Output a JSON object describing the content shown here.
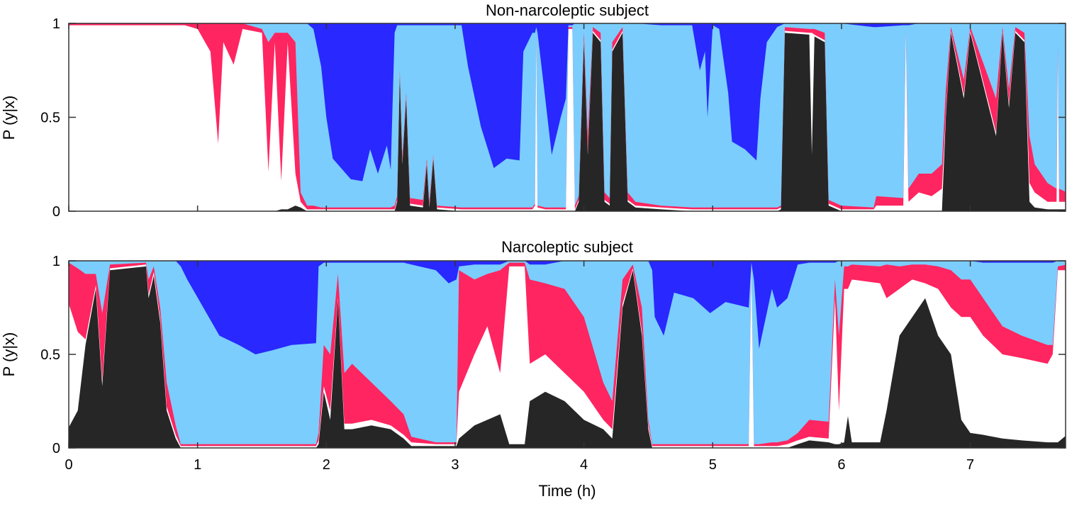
{
  "chart_data": [
    {
      "type": "area",
      "stacked": true,
      "title": "Non-narcoleptic subject",
      "ylabel": "P (y|x)",
      "xlabel": "",
      "xlim": [
        0,
        7.74
      ],
      "ylim": [
        0,
        1
      ],
      "yticks": [
        "0",
        "0.5",
        "1"
      ],
      "yticks_values": [
        0,
        0.5,
        1
      ],
      "xticks_values": [
        0,
        1,
        2,
        3,
        4,
        5,
        6,
        7
      ],
      "show_xtick_labels": false,
      "value_format": "cumulative stacked upper bound of each layer (bottom to top)",
      "x": [
        0,
        0.9,
        1.0,
        1.1,
        1.16,
        1.2,
        1.28,
        1.35,
        1.5,
        1.55,
        1.6,
        1.65,
        1.7,
        1.76,
        1.8,
        1.85,
        1.9,
        1.96,
        2.0,
        2.05,
        2.19,
        2.28,
        2.34,
        2.4,
        2.47,
        2.5,
        2.53,
        2.55,
        2.57,
        2.59,
        2.62,
        2.65,
        2.75,
        2.78,
        2.8,
        2.83,
        2.86,
        3.05,
        3.1,
        3.2,
        3.3,
        3.4,
        3.5,
        3.53,
        3.6,
        3.62,
        3.63,
        3.64,
        3.7,
        3.75,
        3.82,
        3.86,
        3.88,
        3.91,
        3.93,
        3.96,
        4.0,
        4.03,
        4.07,
        4.13,
        4.16,
        4.2,
        4.22,
        4.3,
        4.34,
        4.4,
        4.6,
        4.84,
        4.9,
        4.94,
        4.96,
        5.0,
        5.05,
        5.12,
        5.15,
        5.25,
        5.34,
        5.37,
        5.42,
        5.5,
        5.53,
        5.56,
        5.75,
        5.77,
        5.79,
        5.87,
        5.9,
        6.0,
        6.25,
        6.27,
        6.48,
        6.5,
        6.52,
        6.6,
        6.7,
        6.78,
        6.81,
        6.85,
        6.95,
        7.0,
        7.2,
        7.25,
        7.3,
        7.35,
        7.42,
        7.46,
        7.5,
        7.6,
        7.67,
        7.68,
        7.69,
        7.75
      ],
      "series": [
        {
          "color": "#262626",
          "cum": [
            0,
            0,
            0,
            0,
            0,
            0,
            0,
            0,
            0,
            0,
            0,
            0.01,
            0.01,
            0.03,
            0.02,
            0,
            0,
            0,
            0,
            0,
            0,
            0,
            0,
            0,
            0,
            0,
            0,
            0.05,
            0.72,
            0.25,
            0.6,
            0.03,
            0.02,
            0.25,
            0.02,
            0.28,
            0.01,
            0,
            0,
            0,
            0,
            0,
            0,
            0,
            0,
            0,
            0,
            0,
            0,
            0,
            0,
            0,
            0,
            0,
            0,
            0.05,
            0.9,
            0.3,
            0.95,
            0.9,
            0.05,
            0.03,
            0.85,
            0.95,
            0.05,
            0.02,
            0.01,
            0,
            0,
            0,
            0,
            0,
            0,
            0,
            0,
            0,
            0,
            0,
            0,
            0,
            0.01,
            0.95,
            0.94,
            0.3,
            0.93,
            0.9,
            0.03,
            0,
            0,
            0,
            0,
            0,
            0,
            0,
            0,
            0,
            0.5,
            0.95,
            0.6,
            0.95,
            0.4,
            0.95,
            0.55,
            0.95,
            0.9,
            0.05,
            0.02,
            0.01,
            0.01,
            0.01,
            0.01,
            0.01
          ]
        },
        {
          "color": "#ffffff",
          "cum": [
            0.99,
            0.99,
            0.97,
            0.85,
            0.36,
            0.9,
            0.78,
            0.97,
            0.95,
            0.21,
            0.9,
            0.16,
            0.9,
            0.2,
            0.05,
            0.01,
            0.01,
            0.01,
            0.01,
            0.01,
            0.01,
            0.01,
            0.01,
            0.01,
            0.01,
            0.01,
            0.01,
            0.06,
            0.73,
            0.26,
            0.61,
            0.04,
            0.03,
            0.26,
            0.03,
            0.29,
            0.02,
            0.01,
            0.01,
            0.01,
            0.01,
            0.01,
            0.01,
            0.01,
            0.01,
            0.03,
            0.95,
            0.02,
            0.01,
            0.01,
            0.01,
            0.01,
            0.97,
            0.97,
            0.01,
            0.06,
            0.91,
            0.31,
            0.96,
            0.91,
            0.06,
            0.04,
            0.86,
            0.96,
            0.06,
            0.03,
            0.02,
            0.01,
            0.01,
            0.01,
            0.01,
            0.01,
            0.01,
            0.01,
            0.01,
            0.01,
            0.01,
            0.01,
            0.01,
            0.01,
            0.02,
            0.96,
            0.95,
            0.95,
            0.94,
            0.91,
            0.04,
            0.01,
            0.01,
            0.03,
            0.03,
            0.95,
            0.05,
            0.1,
            0.08,
            0.12,
            0.52,
            0.96,
            0.62,
            0.96,
            0.42,
            0.96,
            0.57,
            0.96,
            0.91,
            0.15,
            0.1,
            0.05,
            0.05,
            0.85,
            0.05,
            0.05
          ]
        },
        {
          "color": "#ff2560",
          "cum": [
            1,
            1,
            1,
            1,
            1,
            1,
            1,
            1,
            0.97,
            0.9,
            0.95,
            0.95,
            0.95,
            0.9,
            0.1,
            0.03,
            0.03,
            0.02,
            0.02,
            0.02,
            0.02,
            0.02,
            0.02,
            0.02,
            0.02,
            0.02,
            0.03,
            0.08,
            0.75,
            0.29,
            0.63,
            0.07,
            0.06,
            0.28,
            0.05,
            0.3,
            0.03,
            0.02,
            0.02,
            0.02,
            0.02,
            0.02,
            0.02,
            0.02,
            0.02,
            0.04,
            0.96,
            0.03,
            0.02,
            0.02,
            0.02,
            0.02,
            0.98,
            0.98,
            0.03,
            0.08,
            0.95,
            0.4,
            0.98,
            0.95,
            0.1,
            0.07,
            0.9,
            0.98,
            0.1,
            0.05,
            0.03,
            0.02,
            0.02,
            0.02,
            0.02,
            0.02,
            0.02,
            0.02,
            0.02,
            0.02,
            0.02,
            0.02,
            0.02,
            0.02,
            0.03,
            0.98,
            0.97,
            0.97,
            0.97,
            0.95,
            0.06,
            0.03,
            0.02,
            0.08,
            0.07,
            0.96,
            0.12,
            0.2,
            0.2,
            0.25,
            0.65,
            0.98,
            0.7,
            0.98,
            0.6,
            0.98,
            0.65,
            0.98,
            0.95,
            0.4,
            0.25,
            0.15,
            0.12,
            0.87,
            0.12,
            0.1
          ]
        },
        {
          "color": "#7bcdfd",
          "cum": [
            1,
            1,
            1,
            1,
            1,
            1,
            1,
            1,
            1,
            1,
            1,
            1,
            1,
            1,
            1,
            1,
            0.97,
            0.77,
            0.5,
            0.28,
            0.17,
            0.16,
            0.33,
            0.2,
            0.35,
            0.22,
            0.95,
            0.99,
            0.99,
            0.99,
            0.99,
            0.99,
            0.99,
            0.99,
            0.99,
            0.99,
            0.99,
            0.99,
            0.77,
            0.45,
            0.23,
            0.28,
            0.27,
            0.85,
            0.95,
            0.95,
            0.98,
            0.95,
            0.6,
            0.3,
            0.5,
            0.6,
            0.99,
            0.99,
            1,
            1,
            1,
            1,
            1,
            1,
            1,
            1,
            1,
            1,
            1,
            1,
            0.99,
            0.99,
            0.75,
            0.85,
            0.5,
            0.99,
            0.97,
            0.63,
            0.37,
            0.33,
            0.27,
            0.6,
            0.9,
            0.98,
            0.99,
            1,
            1,
            1,
            1,
            1,
            1,
            1,
            0.98,
            0.98,
            0.99,
            0.99,
            0.99,
            1,
            1,
            1,
            1,
            1,
            1,
            1,
            1,
            1,
            1,
            1,
            1,
            1,
            1,
            1,
            1,
            1,
            1,
            1
          ]
        },
        {
          "color": "#2828ff",
          "cum": "all-1"
        }
      ]
    },
    {
      "type": "area",
      "stacked": true,
      "title": "Narcoleptic subject",
      "ylabel": "P (y|x)",
      "xlabel": "Time (h)",
      "xlim": [
        0,
        7.74
      ],
      "ylim": [
        0,
        1
      ],
      "yticks": [
        "0",
        "0.5",
        "1"
      ],
      "yticks_values": [
        0,
        0.5,
        1
      ],
      "xticks": [
        "0",
        "1",
        "2",
        "3",
        "4",
        "5",
        "6",
        "7"
      ],
      "xticks_values": [
        0,
        1,
        2,
        3,
        4,
        5,
        6,
        7
      ],
      "value_format": "cumulative stacked upper bound of each layer (bottom to top)",
      "x": [
        0,
        0.07,
        0.13,
        0.21,
        0.26,
        0.32,
        0.6,
        0.62,
        0.66,
        0.71,
        0.76,
        0.83,
        0.87,
        0.92,
        1.02,
        1.17,
        1.32,
        1.45,
        1.57,
        1.73,
        1.92,
        1.94,
        1.98,
        2.03,
        2.09,
        2.14,
        2.2,
        2.35,
        2.5,
        2.6,
        2.66,
        2.85,
        2.95,
        3.01,
        3.03,
        3.15,
        3.25,
        3.35,
        3.42,
        3.54,
        3.58,
        3.7,
        3.85,
        4.0,
        4.15,
        4.22,
        4.3,
        4.38,
        4.45,
        4.5,
        4.53,
        4.55,
        4.62,
        4.7,
        4.85,
        4.98,
        5.1,
        5.28,
        5.3,
        5.32,
        5.36,
        5.46,
        5.5,
        5.58,
        5.66,
        5.75,
        5.9,
        5.95,
        5.98,
        6.02,
        6.05,
        6.08,
        6.3,
        6.35,
        6.45,
        6.55,
        6.65,
        6.75,
        6.85,
        6.93,
        7.0,
        7.1,
        7.25,
        7.4,
        7.6,
        7.64,
        7.68,
        7.75
      ],
      "series": [
        {
          "color": "#262626",
          "cum": [
            0.11,
            0.2,
            0.55,
            0.85,
            0.33,
            0.95,
            0.97,
            0.8,
            0.92,
            0.67,
            0.2,
            0.05,
            0,
            0,
            0,
            0,
            0,
            0,
            0,
            0,
            0,
            0.02,
            0.3,
            0.15,
            0.79,
            0.1,
            0.1,
            0.12,
            0.1,
            0.05,
            0.01,
            0.01,
            0.01,
            0.01,
            0.05,
            0.12,
            0.15,
            0.18,
            0.02,
            0.02,
            0.25,
            0.3,
            0.25,
            0.15,
            0.1,
            0.05,
            0.75,
            0.95,
            0.6,
            0.1,
            0,
            0,
            0,
            0,
            0,
            0,
            0,
            0,
            0,
            0,
            0,
            0,
            0,
            0,
            0.02,
            0.04,
            0.03,
            0.02,
            0.02,
            0.03,
            0.17,
            0.03,
            0.03,
            0.2,
            0.6,
            0.7,
            0.8,
            0.6,
            0.5,
            0.15,
            0.08,
            0.07,
            0.05,
            0.04,
            0.03,
            0.03,
            0.03,
            0.07
          ]
        },
        {
          "color": "#ffffff",
          "cum": [
            0.77,
            0.62,
            0.58,
            0.87,
            0.36,
            0.96,
            0.98,
            0.82,
            0.94,
            0.69,
            0.22,
            0.07,
            0.01,
            0.01,
            0.01,
            0.01,
            0.01,
            0.01,
            0.01,
            0.01,
            0.01,
            0.04,
            0.33,
            0.2,
            0.8,
            0.13,
            0.13,
            0.15,
            0.12,
            0.07,
            0.03,
            0.02,
            0.02,
            0.02,
            0.3,
            0.5,
            0.65,
            0.4,
            0.97,
            0.97,
            0.45,
            0.5,
            0.4,
            0.3,
            0.15,
            0.1,
            0.77,
            0.96,
            0.62,
            0.12,
            0.01,
            0.01,
            0.01,
            0.01,
            0.01,
            0.01,
            0.01,
            0.01,
            0.97,
            0.01,
            0.01,
            0.01,
            0.01,
            0.02,
            0.04,
            0.06,
            0.05,
            0.8,
            0.2,
            0.85,
            0.85,
            0.9,
            0.88,
            0.8,
            0.85,
            0.9,
            0.88,
            0.85,
            0.75,
            0.7,
            0.7,
            0.6,
            0.5,
            0.48,
            0.45,
            0.5,
            0.95,
            0.95
          ]
        },
        {
          "color": "#ff2560",
          "cum": [
            0.99,
            0.96,
            0.93,
            0.93,
            0.72,
            0.98,
            0.99,
            0.9,
            0.97,
            0.75,
            0.35,
            0.12,
            0.02,
            0.02,
            0.02,
            0.02,
            0.02,
            0.02,
            0.02,
            0.02,
            0.02,
            0.08,
            0.55,
            0.5,
            0.93,
            0.4,
            0.45,
            0.35,
            0.25,
            0.18,
            0.06,
            0.03,
            0.03,
            0.03,
            0.95,
            0.9,
            0.93,
            0.95,
            0.99,
            0.99,
            0.9,
            0.88,
            0.85,
            0.7,
            0.35,
            0.25,
            0.9,
            0.98,
            0.75,
            0.15,
            0.02,
            0.02,
            0.02,
            0.02,
            0.02,
            0.02,
            0.02,
            0.02,
            0.98,
            0.02,
            0.02,
            0.03,
            0.03,
            0.04,
            0.08,
            0.15,
            0.14,
            0.9,
            0.6,
            0.97,
            0.97,
            0.98,
            0.97,
            0.98,
            0.97,
            0.98,
            0.98,
            0.97,
            0.95,
            0.9,
            0.9,
            0.8,
            0.65,
            0.6,
            0.55,
            0.55,
            0.97,
            0.98
          ]
        },
        {
          "color": "#7bcdfd",
          "cum": [
            1,
            1,
            1,
            1,
            1,
            1,
            1,
            1,
            1,
            1,
            1,
            1,
            0.97,
            0.9,
            0.78,
            0.6,
            0.55,
            0.5,
            0.52,
            0.55,
            0.56,
            0.97,
            0.99,
            0.99,
            0.99,
            0.99,
            0.99,
            0.99,
            0.99,
            0.99,
            0.98,
            0.95,
            0.88,
            0.9,
            0.97,
            0.98,
            0.98,
            0.98,
            1,
            1,
            0.98,
            0.98,
            1,
            1,
            1,
            1,
            1,
            1,
            1,
            1,
            0.95,
            0.7,
            0.6,
            0.83,
            0.8,
            0.72,
            0.78,
            0.75,
            0.99,
            0.9,
            0.53,
            0.85,
            0.75,
            0.8,
            0.98,
            0.99,
            0.99,
            0.99,
            1,
            1,
            1,
            1,
            1,
            1,
            1,
            1,
            1,
            1,
            1,
            1,
            1,
            0.99,
            0.99,
            0.99,
            0.99,
            0.99,
            1,
            1
          ]
        },
        {
          "color": "#2828ff",
          "cum": "all-1"
        }
      ]
    }
  ]
}
